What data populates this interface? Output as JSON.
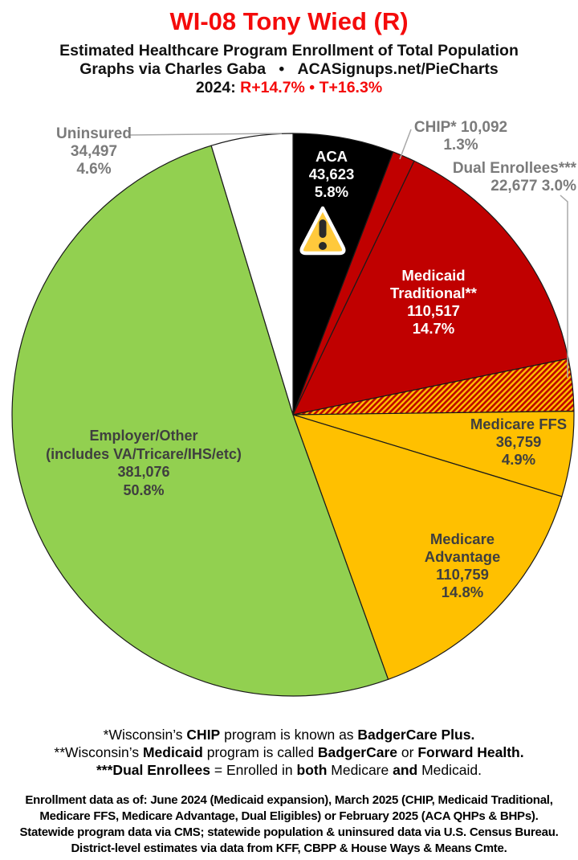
{
  "header": {
    "title": "WI-08 Tony Wied (R)",
    "title_color": "#F40B0B",
    "subtitle1": "Estimated Healthcare Program Enrollment of Total Population",
    "subtitle2": "Graphs via Charles Gaba   •   ACASignups.net/PieCharts",
    "year_line": {
      "prefix": "2024: ",
      "r_margin": "R+14.7%",
      "sep": " • ",
      "t_margin": "T+16.3%",
      "margin_color": "#F40B0B"
    }
  },
  "chart_data": {
    "type": "pie",
    "title": "Estimated Healthcare Program Enrollment of Total Population",
    "units": "people",
    "start_angle": "12 o'clock, clockwise",
    "stroke": "#1a1a1a",
    "hatch": {
      "base": "#FFC000",
      "stripe": "#C00000"
    },
    "warning_icon": {
      "fill": "#FFC93C",
      "outline": "#FFFFFF",
      "mark": "#2a2a2a"
    },
    "leader_color": "#a8a8a8",
    "slices": [
      {
        "name": "ACA",
        "value": 43623,
        "pct": 5.8,
        "color": "#000000",
        "label_lines": [
          "ACA",
          "43,623",
          "5.8%"
        ]
      },
      {
        "name": "CHIP",
        "value": 10092,
        "pct": 1.3,
        "color": "#C00000",
        "label_lines": [
          "CHIP* 10,092",
          "1.3%"
        ]
      },
      {
        "name": "Medicaid Traditional",
        "value": 110517,
        "pct": 14.7,
        "color": "#C00000",
        "label_lines": [
          "Medicaid",
          "Traditional**",
          "110,517",
          "14.7%"
        ]
      },
      {
        "name": "Dual Enrollees",
        "value": 22677,
        "pct": 3.0,
        "color": "hatch",
        "label_lines": [
          "Dual Enrollees***",
          "22,677 3.0%"
        ]
      },
      {
        "name": "Medicare FFS",
        "value": 36759,
        "pct": 4.9,
        "color": "#FFC000",
        "label_lines": [
          "Medicare FFS",
          "36,759",
          "4.9%"
        ]
      },
      {
        "name": "Medicare Advantage",
        "value": 110759,
        "pct": 14.8,
        "color": "#FFC000",
        "label_lines": [
          "Medicare",
          "Advantage",
          "110,759",
          "14.8%"
        ]
      },
      {
        "name": "Employer/Other",
        "value": 381076,
        "pct": 50.8,
        "color": "#92D050",
        "label_lines": [
          "Employer/Other",
          "(includes VA/Tricare/IHS/etc)",
          "381,076",
          "50.8%"
        ]
      },
      {
        "name": "Uninsured",
        "value": 34497,
        "pct": 4.6,
        "color": "#FFFFFF",
        "label_lines": [
          "Uninsured",
          "34,497",
          "4.6%"
        ]
      }
    ]
  },
  "footnotes": {
    "line1_runs": [
      {
        "t": "*Wisconsin’s "
      },
      {
        "t": "CHIP",
        "b": true
      },
      {
        "t": " program is known as "
      },
      {
        "t": "BadgerCare Plus.",
        "b": true
      }
    ],
    "line2_runs": [
      {
        "t": "**Wisconsin’s "
      },
      {
        "t": "Medicaid",
        "b": true
      },
      {
        "t": " program is called "
      },
      {
        "t": "BadgerCare",
        "b": true
      },
      {
        "t": " or "
      },
      {
        "t": "Forward Health.",
        "b": true
      }
    ],
    "line3_runs": [
      {
        "t": "***Dual Enrollees",
        "b": true
      },
      {
        "t": " = Enrolled in "
      },
      {
        "t": "both",
        "b": true
      },
      {
        "t": " Medicare "
      },
      {
        "t": "and",
        "b": true
      },
      {
        "t": " Medicaid."
      }
    ]
  },
  "source_block": {
    "lines": [
      "Enrollment data as of: June 2024 (Medicaid expansion), March 2025 (CHIP, Medicaid Traditional,",
      "Medicare FFS, Medicare Advantage, Dual Eligibles) or February 2025 (ACA QHPs & BHPs).",
      "Statewide program data via CMS; statewide population & uninsured data via U.S. Census Bureau.",
      "District-level estimates via data from KFF, CBPP & House Ways & Means Cmte."
    ]
  }
}
